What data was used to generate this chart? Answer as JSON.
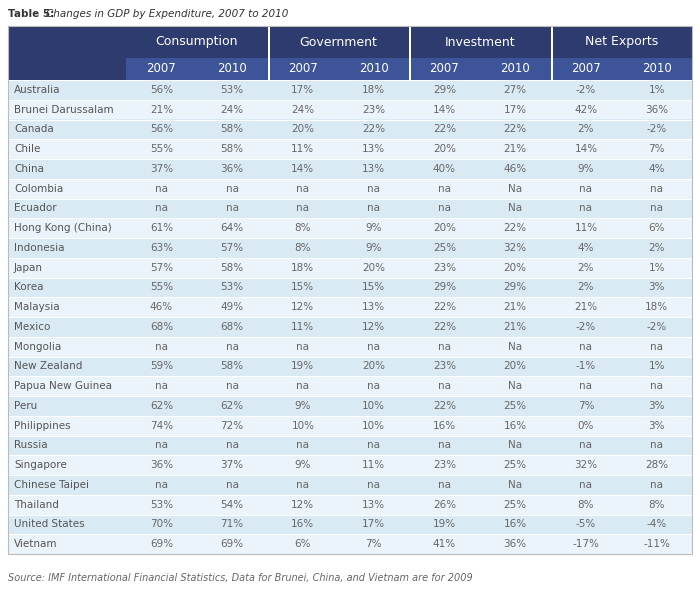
{
  "title_bold": "Table 5: ",
  "title_italic": "Changes in GDP by Expenditure, 2007 to 2010",
  "source": "Source: IMF International Financial Statistics, Data for Brunei, China, and Vietnam are for 2009",
  "col_groups": [
    "Consumption",
    "Government",
    "Investment",
    "Net Exports"
  ],
  "col_years": [
    "2007",
    "2010",
    "2007",
    "2010",
    "2007",
    "2010",
    "2007",
    "2010"
  ],
  "rows": [
    [
      "Australia",
      "56%",
      "53%",
      "17%",
      "18%",
      "29%",
      "27%",
      "-2%",
      "1%"
    ],
    [
      "Brunei Darussalam",
      "21%",
      "24%",
      "24%",
      "23%",
      "14%",
      "17%",
      "42%",
      "36%"
    ],
    [
      "Canada",
      "56%",
      "58%",
      "20%",
      "22%",
      "22%",
      "22%",
      "2%",
      "-2%"
    ],
    [
      "Chile",
      "55%",
      "58%",
      "11%",
      "13%",
      "20%",
      "21%",
      "14%",
      "7%"
    ],
    [
      "China",
      "37%",
      "36%",
      "14%",
      "13%",
      "40%",
      "46%",
      "9%",
      "4%"
    ],
    [
      "Colombia",
      "na",
      "na",
      "na",
      "na",
      "na",
      "Na",
      "na",
      "na"
    ],
    [
      "Ecuador",
      "na",
      "na",
      "na",
      "na",
      "na",
      "Na",
      "na",
      "na"
    ],
    [
      "Hong Kong (China)",
      "61%",
      "64%",
      "8%",
      "9%",
      "20%",
      "22%",
      "11%",
      "6%"
    ],
    [
      "Indonesia",
      "63%",
      "57%",
      "8%",
      "9%",
      "25%",
      "32%",
      "4%",
      "2%"
    ],
    [
      "Japan",
      "57%",
      "58%",
      "18%",
      "20%",
      "23%",
      "20%",
      "2%",
      "1%"
    ],
    [
      "Korea",
      "55%",
      "53%",
      "15%",
      "15%",
      "29%",
      "29%",
      "2%",
      "3%"
    ],
    [
      "Malaysia",
      "46%",
      "49%",
      "12%",
      "13%",
      "22%",
      "21%",
      "21%",
      "18%"
    ],
    [
      "Mexico",
      "68%",
      "68%",
      "11%",
      "12%",
      "22%",
      "21%",
      "-2%",
      "-2%"
    ],
    [
      "Mongolia",
      "na",
      "na",
      "na",
      "na",
      "na",
      "Na",
      "na",
      "na"
    ],
    [
      "New Zealand",
      "59%",
      "58%",
      "19%",
      "20%",
      "23%",
      "20%",
      "-1%",
      "1%"
    ],
    [
      "Papua New Guinea",
      "na",
      "na",
      "na",
      "na",
      "na",
      "Na",
      "na",
      "na"
    ],
    [
      "Peru",
      "62%",
      "62%",
      "9%",
      "10%",
      "22%",
      "25%",
      "7%",
      "3%"
    ],
    [
      "Philippines",
      "74%",
      "72%",
      "10%",
      "10%",
      "16%",
      "16%",
      "0%",
      "3%"
    ],
    [
      "Russia",
      "na",
      "na",
      "na",
      "na",
      "na",
      "Na",
      "na",
      "na"
    ],
    [
      "Singapore",
      "36%",
      "37%",
      "9%",
      "11%",
      "23%",
      "25%",
      "32%",
      "28%"
    ],
    [
      "Chinese Taipei",
      "na",
      "na",
      "na",
      "na",
      "na",
      "Na",
      "na",
      "na"
    ],
    [
      "Thailand",
      "53%",
      "54%",
      "12%",
      "13%",
      "26%",
      "25%",
      "8%",
      "8%"
    ],
    [
      "United States",
      "70%",
      "71%",
      "16%",
      "17%",
      "19%",
      "16%",
      "-5%",
      "-4%"
    ],
    [
      "Vietnam",
      "69%",
      "69%",
      "6%",
      "7%",
      "41%",
      "36%",
      "-17%",
      "-11%"
    ]
  ],
  "header_dark_color": "#2E3B6E",
  "header_mid_color": "#3D5499",
  "row_even_color": "#DAEAF5",
  "row_odd_color": "#EBF4FA",
  "header_text_color": "#FFFFFF",
  "data_text_color": "#666666",
  "country_text_color": "#555555",
  "title_color": "#333333",
  "source_color": "#666666",
  "bg_color": "#FFFFFF"
}
